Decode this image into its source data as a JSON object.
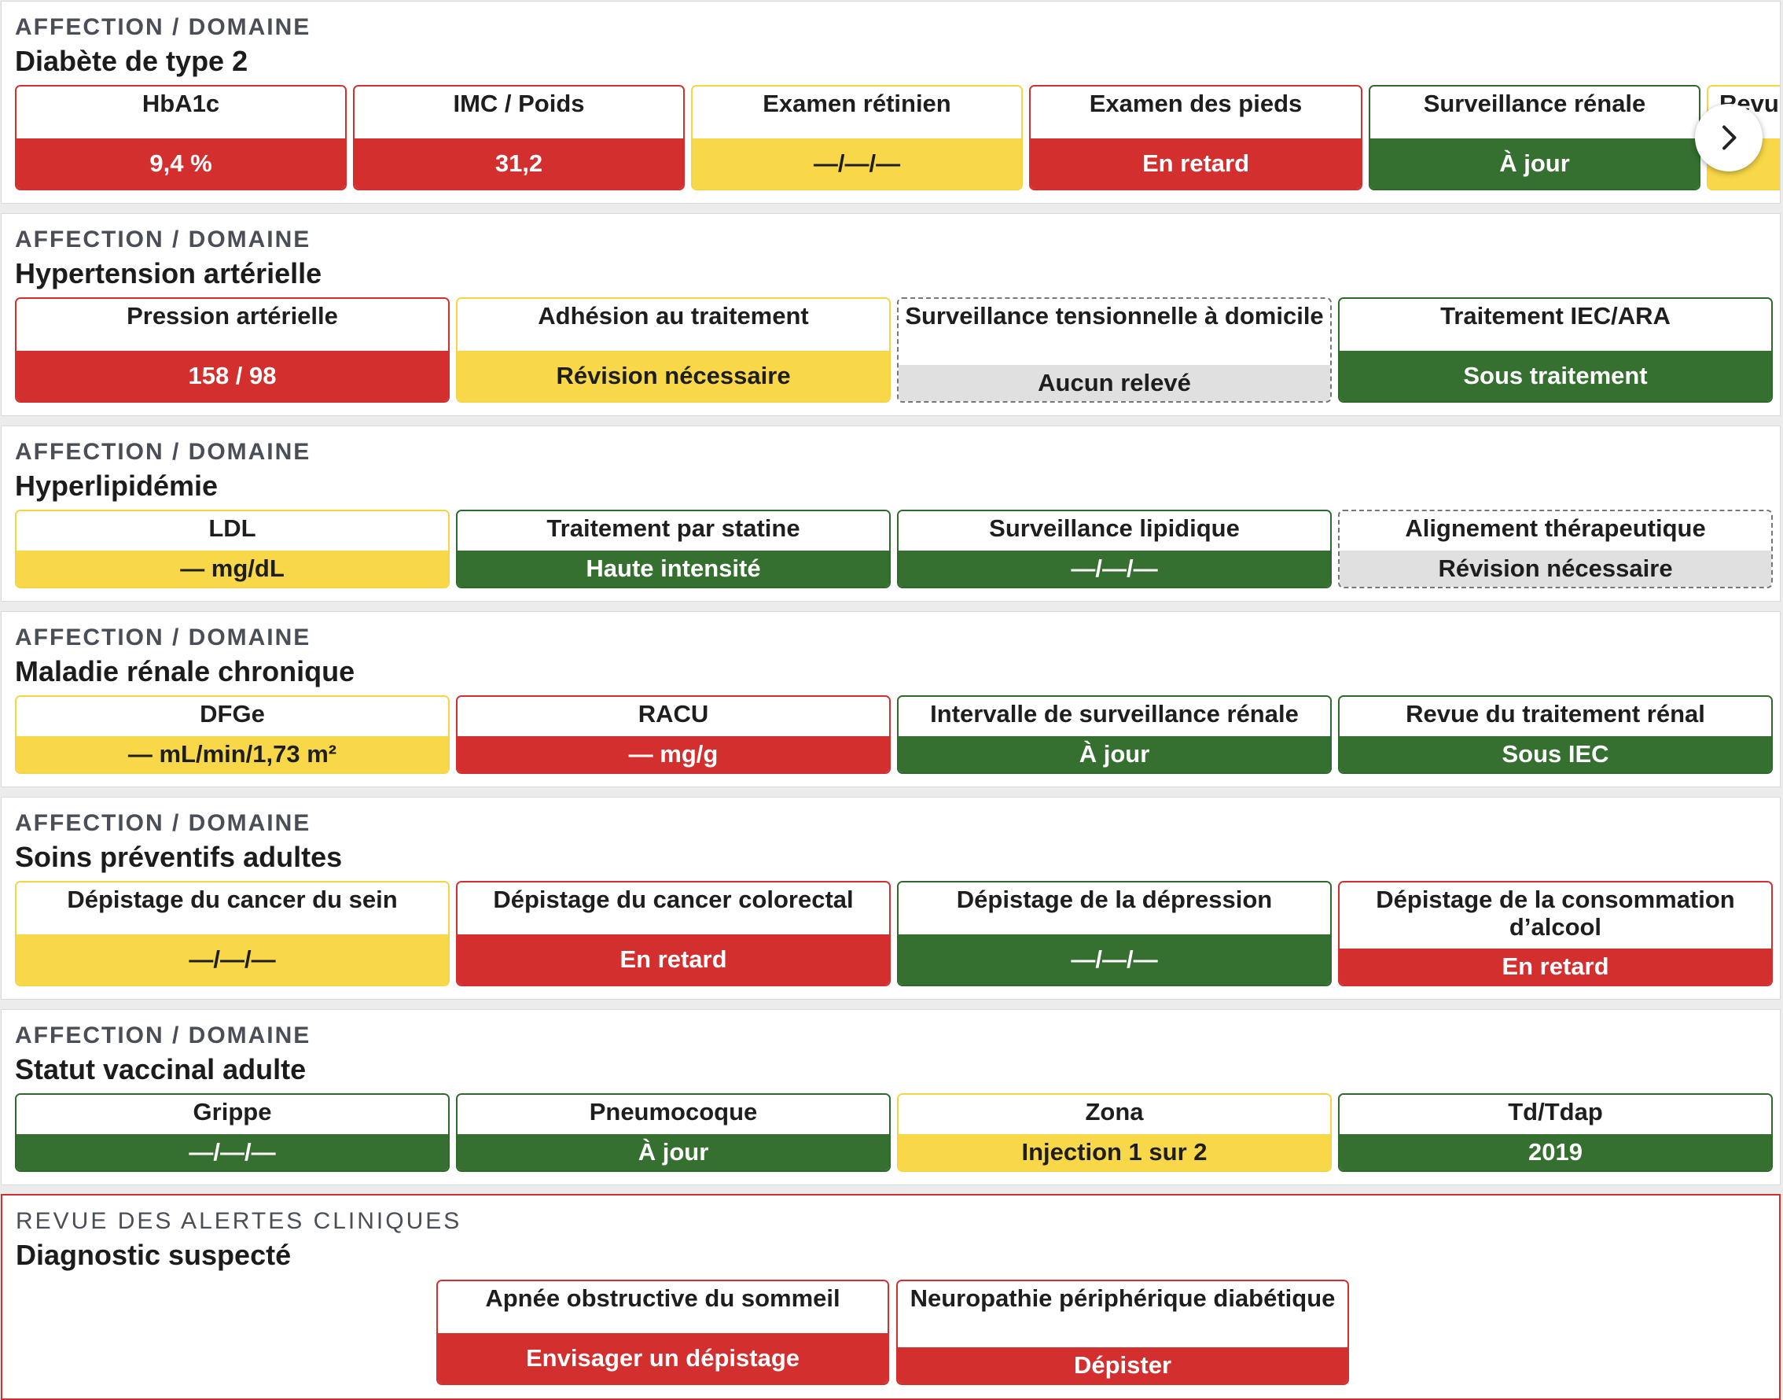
{
  "sections": [
    {
      "label": "AFFECTION / DOMAINE",
      "title": "Diabète de type 2",
      "tiles": [
        {
          "name": "HbA1c",
          "value": "9,4 %",
          "status": "red"
        },
        {
          "name": "IMC / Poids",
          "value": "31,2",
          "status": "red"
        },
        {
          "name": "Examen rétinien",
          "value": "—/—/—",
          "status": "yellow"
        },
        {
          "name": "Examen des pieds",
          "value": "En retard",
          "status": "red"
        },
        {
          "name": "Surveillance rénale",
          "value": "À jour",
          "status": "green"
        },
        {
          "name": "Revu",
          "value": "",
          "status": "yellow"
        }
      ],
      "next_icon": "chevron-right-icon"
    },
    {
      "label": "AFFECTION / DOMAINE",
      "title": "Hypertension artérielle",
      "tiles": [
        {
          "name": "Pression artérielle",
          "value": "158 / 98",
          "status": "red"
        },
        {
          "name": "Adhésion au traitement",
          "value": "Révision nécessaire",
          "status": "yellow"
        },
        {
          "name": "Surveillance tensionnelle à domicile",
          "value": "Aucun relevé",
          "status": "gray"
        },
        {
          "name": "Traitement IEC/ARA",
          "value": "Sous traitement",
          "status": "green"
        }
      ]
    },
    {
      "label": "AFFECTION / DOMAINE",
      "title": "Hyperlipidémie",
      "tiles": [
        {
          "name": "LDL",
          "value": "— mg/dL",
          "status": "yellow"
        },
        {
          "name": "Traitement par statine",
          "value": "Haute intensité",
          "status": "green"
        },
        {
          "name": "Surveillance lipidique",
          "value": "—/—/—",
          "status": "green"
        },
        {
          "name": "Alignement thérapeutique",
          "value": "Révision nécessaire",
          "status": "gray"
        }
      ]
    },
    {
      "label": "AFFECTION / DOMAINE",
      "title": "Maladie rénale chronique",
      "tiles": [
        {
          "name": "DFGe",
          "value": "— mL/min/1,73 m²",
          "status": "yellow"
        },
        {
          "name": "RACU",
          "value": "— mg/g",
          "status": "red"
        },
        {
          "name": "Intervalle de surveillance rénale",
          "value": "À jour",
          "status": "green"
        },
        {
          "name": "Revue du traitement rénal",
          "value": "Sous IEC",
          "status": "green"
        }
      ]
    },
    {
      "label": "AFFECTION / DOMAINE",
      "title": "Soins préventifs adultes",
      "tiles": [
        {
          "name": "Dépistage du cancer du sein",
          "value": "—/—/—",
          "status": "yellow"
        },
        {
          "name": "Dépistage du cancer colorectal",
          "value": "En retard",
          "status": "red"
        },
        {
          "name": "Dépistage de la dépression",
          "value": "—/—/—",
          "status": "green"
        },
        {
          "name": "Dépistage de la consommation d’alcool",
          "value": "En retard",
          "status": "red"
        }
      ]
    },
    {
      "label": "AFFECTION / DOMAINE",
      "title": "Statut vaccinal adulte",
      "tiles": [
        {
          "name": "Grippe",
          "value": "—/—/—",
          "status": "green"
        },
        {
          "name": "Pneumocoque",
          "value": "À jour",
          "status": "green"
        },
        {
          "name": "Zona",
          "value": "Injection 1 sur 2",
          "status": "yellow"
        },
        {
          "name": "Td/Tdap",
          "value": "2019",
          "status": "green"
        }
      ]
    },
    {
      "label": "REVUE DES ALERTES CLINIQUES",
      "title": "Diagnostic suspecté",
      "tiles": [
        {
          "name": "Apnée obstructive du sommeil",
          "value": "Envisager un dépistage",
          "status": "red"
        },
        {
          "name": "Neuropathie périphérique diabétique",
          "value": "Dépister",
          "status": "red"
        }
      ]
    }
  ]
}
